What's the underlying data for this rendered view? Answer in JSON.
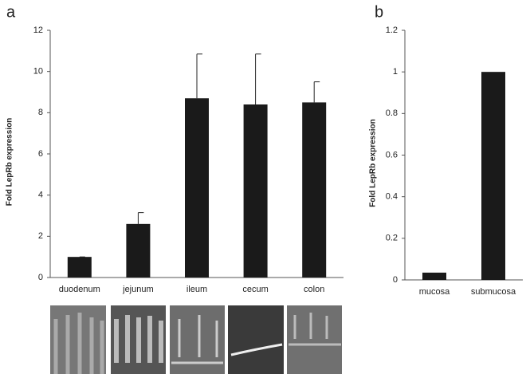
{
  "chart_data": [
    {
      "type": "bar",
      "panel": "a",
      "y_label": "Fold LepRb expression",
      "categories": [
        "duodenum",
        "jejunum",
        "ileum",
        "cecum",
        "colon"
      ],
      "values": [
        1.0,
        2.6,
        8.7,
        8.4,
        8.5
      ],
      "errors": [
        0,
        0.55,
        2.15,
        2.45,
        1.0
      ],
      "color": "#1a1a1a",
      "ylim": [
        0,
        12
      ],
      "yticks": [
        0,
        2,
        4,
        6,
        8,
        10,
        12
      ]
    },
    {
      "type": "bar",
      "panel": "b",
      "y_label": "Fold LepRb expression",
      "categories": [
        "mucosa",
        "submucosa"
      ],
      "values": [
        0.035,
        1.0
      ],
      "color": "#1a1a1a",
      "ylim": [
        0,
        1.2
      ],
      "yticks": [
        0,
        0.2,
        0.4,
        0.6,
        0.8,
        1,
        1.2
      ]
    }
  ]
}
